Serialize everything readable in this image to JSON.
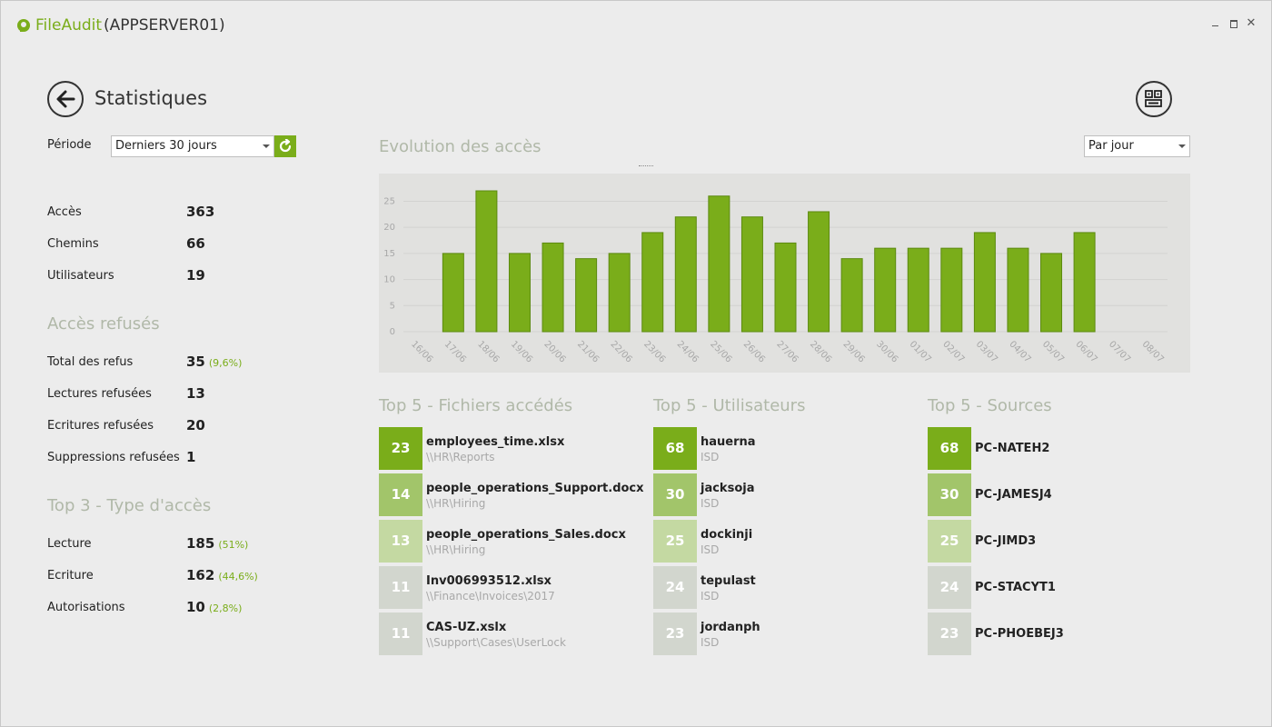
{
  "app": {
    "name": "FileAudit",
    "server": "(APPSERVER01)"
  },
  "page": {
    "title": "Statistiques"
  },
  "period": {
    "label": "Période",
    "value": "Derniers 30 jours"
  },
  "summary": [
    {
      "label": "Accès",
      "value": "363",
      "pct": ""
    },
    {
      "label": "Chemins",
      "value": "66",
      "pct": ""
    },
    {
      "label": "Utilisateurs",
      "value": "19",
      "pct": ""
    }
  ],
  "denied": {
    "title": "Accès refusés",
    "items": [
      {
        "label": "Total des refus",
        "value": "35",
        "pct": "(9,6%)"
      },
      {
        "label": "Lectures refusées",
        "value": "13",
        "pct": ""
      },
      {
        "label": "Ecritures refusées",
        "value": "20",
        "pct": ""
      },
      {
        "label": "Suppressions refusées",
        "value": "1",
        "pct": ""
      }
    ]
  },
  "access_types": {
    "title": "Top 3 - Type d'accès",
    "items": [
      {
        "label": "Lecture",
        "value": "185",
        "pct": "(51%)"
      },
      {
        "label": "Ecriture",
        "value": "162",
        "pct": "(44,6%)"
      },
      {
        "label": "Autorisations",
        "value": "10",
        "pct": "(2,8%)"
      }
    ]
  },
  "chart": {
    "title": "Evolution des accès",
    "granularity": "Par jour"
  },
  "chart_data": {
    "type": "bar",
    "title": "Evolution des accès",
    "categories": [
      "16/06",
      "17/06",
      "18/06",
      "19/06",
      "20/06",
      "21/06",
      "22/06",
      "23/06",
      "24/06",
      "25/06",
      "26/06",
      "27/06",
      "28/06",
      "29/06",
      "30/06",
      "01/07",
      "02/07",
      "03/07",
      "04/07",
      "05/07",
      "06/07",
      "07/07",
      "08/07"
    ],
    "values": [
      null,
      15,
      27,
      15,
      17,
      14,
      15,
      19,
      22,
      26,
      22,
      17,
      23,
      14,
      16,
      16,
      16,
      19,
      16,
      15,
      19,
      null,
      null
    ],
    "yticks": [
      0,
      5,
      10,
      15,
      20,
      25
    ],
    "ylim": [
      0,
      27
    ],
    "grid": true,
    "color": "#7aad1a"
  },
  "top_files": {
    "title": "Top 5 - Fichiers accédés",
    "items": [
      {
        "count": "23",
        "name": "employees_time.xlsx",
        "sub": "\\\\HR\\Reports"
      },
      {
        "count": "14",
        "name": "people_operations_Support.docx",
        "sub": "\\\\HR\\Hiring"
      },
      {
        "count": "13",
        "name": "people_operations_Sales.docx",
        "sub": "\\\\HR\\Hiring"
      },
      {
        "count": "11",
        "name": "Inv006993512.xlsx",
        "sub": "\\\\Finance\\Invoices\\2017"
      },
      {
        "count": "11",
        "name": "CAS-UZ.xslx",
        "sub": "\\\\Support\\Cases\\UserLock"
      }
    ]
  },
  "top_users": {
    "title": "Top 5 - Utilisateurs",
    "items": [
      {
        "count": "68",
        "name": "hauerna",
        "sub": "ISD"
      },
      {
        "count": "30",
        "name": "jacksoja",
        "sub": "ISD"
      },
      {
        "count": "25",
        "name": "dockinji",
        "sub": "ISD"
      },
      {
        "count": "24",
        "name": "tepulast",
        "sub": "ISD"
      },
      {
        "count": "23",
        "name": "jordanph",
        "sub": "ISD"
      }
    ]
  },
  "top_sources": {
    "title": "Top 5 - Sources",
    "items": [
      {
        "count": "68",
        "name": "PC-NATEH2",
        "sub": ""
      },
      {
        "count": "30",
        "name": "PC-JAMESJ4",
        "sub": ""
      },
      {
        "count": "25",
        "name": "PC-JIMD3",
        "sub": ""
      },
      {
        "count": "24",
        "name": "PC-STACYT1",
        "sub": ""
      },
      {
        "count": "23",
        "name": "PC-PHOEBEJ3",
        "sub": ""
      }
    ]
  },
  "colors": {
    "accent": "#7aad1a",
    "rank_shades": [
      "#7aad1a",
      "#a2c56a",
      "#c4d9a2",
      "#d2d6ce",
      "#d2d6ce"
    ]
  }
}
